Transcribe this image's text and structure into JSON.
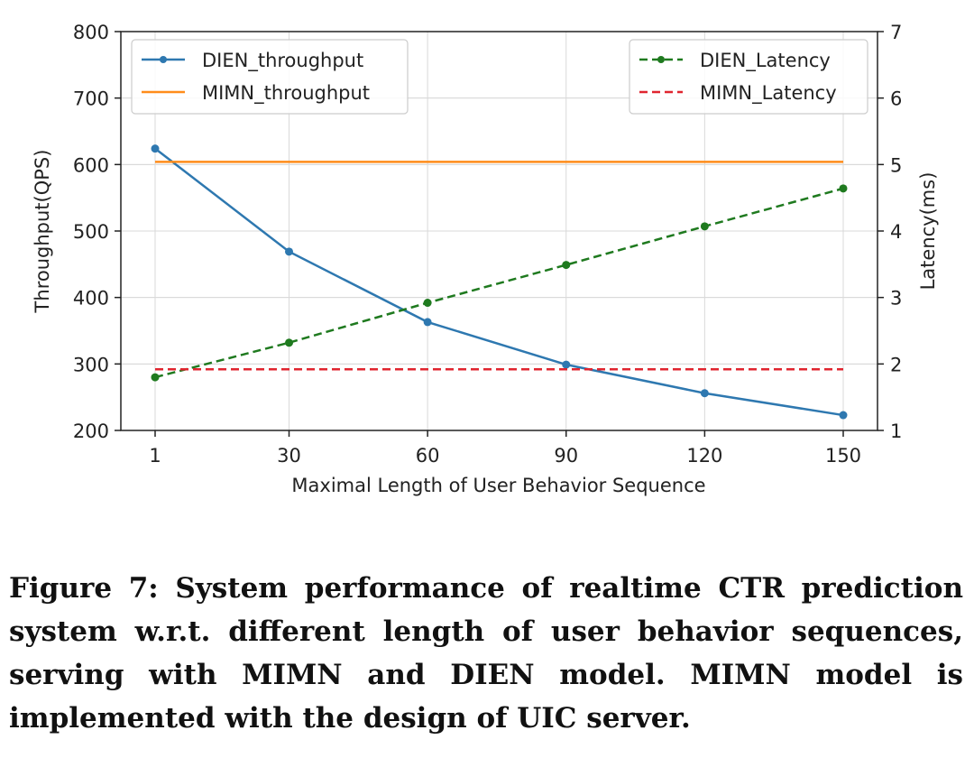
{
  "chart_data": {
    "type": "line",
    "xlabel": "Maximal Length of User Behavior Sequence",
    "ylabel_left": "Throughput(QPS)",
    "ylabel_right": "Latency(ms)",
    "x": [
      1,
      30,
      60,
      90,
      120,
      150
    ],
    "x_tick_labels": [
      "1",
      "30",
      "60",
      "90",
      "120",
      "150"
    ],
    "ylim_left": [
      200,
      800
    ],
    "yticks_left": [
      "200",
      "300",
      "400",
      "500",
      "600",
      "700",
      "800"
    ],
    "ylim_right": [
      1,
      7
    ],
    "yticks_right": [
      "1",
      "2",
      "3",
      "4",
      "5",
      "6",
      "7"
    ],
    "grid": true,
    "series_left": [
      {
        "name": "DIEN_throughput",
        "values": [
          624,
          469,
          363,
          299,
          256,
          223
        ],
        "color": "#2e78b0",
        "style": "solid",
        "marker": true
      },
      {
        "name": "MIMN_throughput",
        "values": [
          604,
          604,
          604,
          604,
          604,
          604
        ],
        "color": "#ff8c1a",
        "style": "solid",
        "marker": false
      }
    ],
    "series_right": [
      {
        "name": "DIEN_Latency",
        "values": [
          1.8,
          2.32,
          2.92,
          3.49,
          4.07,
          4.64
        ],
        "color": "#1f7a1f",
        "style": "dashed",
        "marker": true
      },
      {
        "name": "MIMN_Latency",
        "values": [
          1.92,
          1.92,
          1.92,
          1.92,
          1.92,
          1.92
        ],
        "color": "#e0252f",
        "style": "dashed",
        "marker": false
      }
    ],
    "legend_left_placement": "top-left",
    "legend_right_placement": "top-right"
  },
  "caption": "Figure 7: System performance of realtime CTR prediction system w.r.t. different length of user behavior sequences, serving with MIMN and DIEN model. MIMN model is implemented with the design of UIC server."
}
